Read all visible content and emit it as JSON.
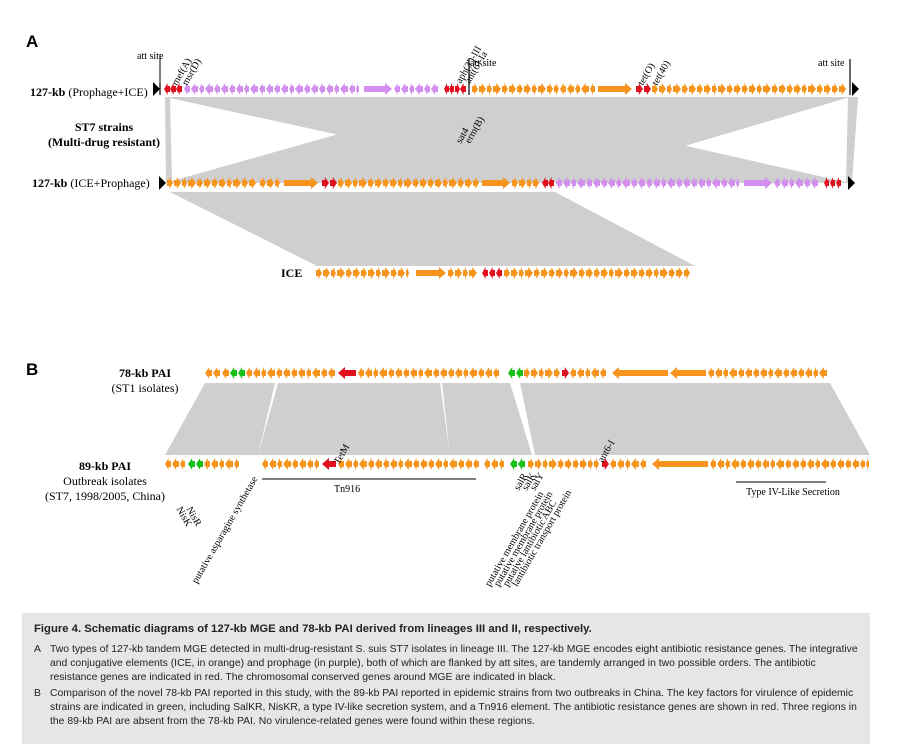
{
  "panel_a": {
    "letter": "A",
    "rows": [
      {
        "bold": "127-kb",
        "rest": " (Prophage+ICE)"
      },
      {
        "bold": "127-kb",
        "rest": " (ICE+Prophage)"
      }
    ],
    "strain_title_1": "ST7 strains",
    "strain_title_2": "(Multi-drug resistant)",
    "ice_label": "ICE",
    "att_site": "att site",
    "genes_top": [
      "mef(A)",
      "msr(D)",
      "aph(3')-III",
      "ant(6)-Ia",
      "tet(O)",
      "tet(40)"
    ],
    "genes_bottom": [
      "sat4",
      "erm(B)"
    ]
  },
  "panel_b": {
    "letter": "B",
    "pai78_title": "78-kb PAI",
    "pai78_sub": "(ST1 isolates)",
    "pai89_title": "89-kb PAI",
    "pai89_sub1": "Outbreak isolates",
    "pai89_sub2": "(ST7, 1998/2005, China)",
    "tetm": "TetM",
    "ant_l": "ant6-I",
    "tn916": "Tn916",
    "type4": "Type IV-Like Secretion",
    "nis_genes": [
      "NisK",
      "NisR"
    ],
    "asparagine": "putative asparagine synthetase",
    "sal_genes": [
      "salR",
      "salK",
      "salY"
    ],
    "sal_desc": [
      "putative membrane protein",
      "putative membrane protein",
      "putative lantibiotic ABC",
      "lantibiotic transport protein"
    ]
  },
  "caption": {
    "title": "Figure 4.   Schematic diagrams of 127-kb MGE and 78-kb PAI derived from lineages III and II, respectively.",
    "items": [
      {
        "letter": "A",
        "text": "Two types of 127-kb tandem MGE detected in multi-drug-resistant S. suis ST7 isolates in lineage III. The 127-kb MGE encodes eight antibiotic resistance genes. The integrative and conjugative elements (ICE, in orange) and prophage (in purple), both of which are flanked by att sites, are tandemly arranged in two possible orders. The antibiotic resistance genes are indicated in red. The chromosomal conserved genes around MGE are indicated in black."
      },
      {
        "letter": "B",
        "text": "Comparison of the novel 78-kb PAI reported in this study, with the 89-kb PAI reported in epidemic strains from two outbreaks in China. The key factors for virulence of epidemic strains are indicated in green, including SalKR, NisKR, a type IV-like secretion system, and a Tn916 element. The antibiotic resistance genes are shown in red. Three regions in the 89-kb PAI are absent from the 78-kb PAI. No virulence-related genes were found within these regions."
      }
    ]
  },
  "colors": {
    "ice": "#f7941d",
    "prophage": "#d38ef0",
    "resistance": "#e0101e",
    "virulence": "#19c019",
    "conserved": "#000000",
    "synteny": "#cfcfcf"
  }
}
